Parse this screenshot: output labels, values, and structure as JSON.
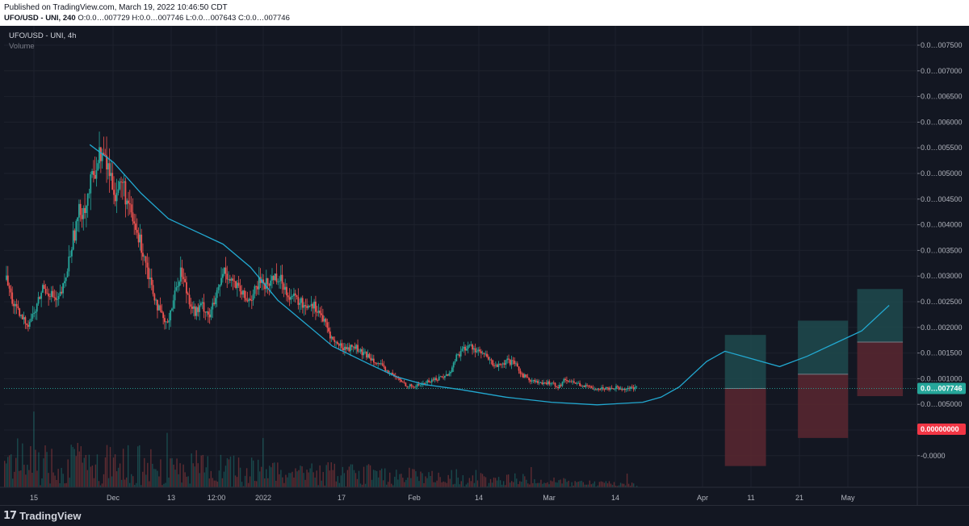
{
  "header": {
    "published": "Published on TradingView.com, March 19, 2022 10:46:50 CDT",
    "symbol_line": "UFO/USD - UNI, 240",
    "ohlc": {
      "open": "O:0.0…007729",
      "high": "H:0.0…007746",
      "low": "L:0.0…007643",
      "close": "C:0.0…007746"
    }
  },
  "legend": {
    "title": "UFO/USD - UNI, 4h",
    "volume": "Volume"
  },
  "footer": {
    "brand": "TradingView"
  },
  "colors": {
    "background": "#131722",
    "up": "#26a69a",
    "down": "#ef5350",
    "ma_line": "#22a8d0",
    "last_price": "#26a69a",
    "stop_tag": "#f23645",
    "target_zone": "#1f4a4e",
    "stop_zone": "#5a2730"
  },
  "chart_data": {
    "type": "candlestick",
    "y_axis_labels": [
      "0.0…007500",
      "0.0…007000",
      "0.0…006500",
      "0.0…006000",
      "0.0…005500",
      "0.0…005000",
      "0.0…004500",
      "0.0…004000",
      "0.0…003500",
      "0.0…003000",
      "0.0…002500",
      "0.0…002000",
      "0.0…001500",
      "0.0…001000",
      "0.0…005000",
      "-0.0000",
      "-0.0000"
    ],
    "x_axis_labels": [
      "15",
      "Dec",
      "13",
      "12:00",
      "2022",
      "17",
      "Feb",
      "14",
      "Mar",
      "14",
      "Apr",
      "11",
      "21",
      "May"
    ],
    "last_price_label": "0.0…007746",
    "stop_label": "0.00000000",
    "price_path": [
      [
        0,
        0.0029
      ],
      [
        1,
        0.0024
      ],
      [
        2,
        0.00215
      ],
      [
        3,
        0.00205
      ],
      [
        4,
        0.0023
      ],
      [
        5,
        0.00275
      ],
      [
        6,
        0.00265
      ],
      [
        7,
        0.00245
      ],
      [
        8,
        0.0028
      ],
      [
        9,
        0.0036
      ],
      [
        10,
        0.0042
      ],
      [
        11,
        0.0044
      ],
      [
        12,
        0.005
      ],
      [
        13,
        0.0054
      ],
      [
        14,
        0.0051
      ],
      [
        15,
        0.0046
      ],
      [
        16,
        0.0048
      ],
      [
        17,
        0.0042
      ],
      [
        18,
        0.0038
      ],
      [
        19,
        0.0034
      ],
      [
        20,
        0.0028
      ],
      [
        21,
        0.0023
      ],
      [
        22,
        0.002
      ],
      [
        23,
        0.0025
      ],
      [
        24,
        0.0031
      ],
      [
        25,
        0.0026
      ],
      [
        26,
        0.00225
      ],
      [
        27,
        0.0024
      ],
      [
        28,
        0.0022
      ],
      [
        29,
        0.0026
      ],
      [
        30,
        0.0031
      ],
      [
        31,
        0.0029
      ],
      [
        32,
        0.0027
      ],
      [
        33,
        0.0025
      ],
      [
        34,
        0.0026
      ],
      [
        35,
        0.0029
      ],
      [
        36,
        0.0028
      ],
      [
        37,
        0.003
      ],
      [
        38,
        0.00285
      ],
      [
        39,
        0.0026
      ],
      [
        40,
        0.0025
      ],
      [
        41,
        0.0024
      ],
      [
        42,
        0.00245
      ],
      [
        43,
        0.0023
      ],
      [
        44,
        0.002
      ],
      [
        45,
        0.0017
      ],
      [
        46,
        0.0016
      ],
      [
        47,
        0.00155
      ],
      [
        48,
        0.0016
      ],
      [
        49,
        0.00145
      ],
      [
        50,
        0.0014
      ],
      [
        51,
        0.0013
      ],
      [
        52,
        0.00115
      ],
      [
        53,
        0.00105
      ],
      [
        54,
        0.00095
      ],
      [
        55,
        0.00085
      ],
      [
        56,
        0.0008
      ],
      [
        57,
        0.00085
      ],
      [
        58,
        0.0009
      ],
      [
        59,
        0.00095
      ],
      [
        60,
        0.001
      ],
      [
        61,
        0.00105
      ],
      [
        62,
        0.0014
      ],
      [
        63,
        0.00155
      ],
      [
        64,
        0.0016
      ],
      [
        65,
        0.0015
      ],
      [
        66,
        0.0014
      ],
      [
        67,
        0.00125
      ],
      [
        68,
        0.0012
      ],
      [
        69,
        0.0013
      ],
      [
        70,
        0.00125
      ],
      [
        71,
        0.00105
      ],
      [
        72,
        0.00095
      ],
      [
        73,
        0.0009
      ],
      [
        74,
        0.00085
      ],
      [
        75,
        0.0009
      ],
      [
        76,
        0.0008
      ],
      [
        77,
        0.00095
      ],
      [
        78,
        0.0009
      ],
      [
        79,
        0.00085
      ],
      [
        80,
        0.0008
      ],
      [
        81,
        0.00078
      ],
      [
        82,
        0.00077
      ],
      [
        83,
        0.00078
      ],
      [
        84,
        0.00079
      ],
      [
        85,
        0.00077
      ],
      [
        86,
        0.00078
      ],
      [
        87,
        0.00077
      ]
    ],
    "moving_average": [
      [
        0.094,
        0.00555
      ],
      [
        0.12,
        0.0052
      ],
      [
        0.15,
        0.0046
      ],
      [
        0.18,
        0.0041
      ],
      [
        0.21,
        0.00385
      ],
      [
        0.24,
        0.0036
      ],
      [
        0.27,
        0.00315
      ],
      [
        0.3,
        0.0025
      ],
      [
        0.33,
        0.00205
      ],
      [
        0.36,
        0.0016
      ],
      [
        0.4,
        0.00125
      ],
      [
        0.43,
        0.001
      ],
      [
        0.46,
        0.00085
      ],
      [
        0.5,
        0.00075
      ],
      [
        0.55,
        0.0006
      ],
      [
        0.6,
        0.0005
      ],
      [
        0.65,
        0.00045
      ],
      [
        0.7,
        0.0005
      ],
      [
        0.72,
        0.0006
      ],
      [
        0.74,
        0.0008
      ],
      [
        0.77,
        0.0013
      ],
      [
        0.79,
        0.0015
      ],
      [
        0.82,
        0.00135
      ],
      [
        0.85,
        0.0012
      ],
      [
        0.88,
        0.0014
      ],
      [
        0.91,
        0.00165
      ],
      [
        0.94,
        0.0019
      ],
      [
        0.97,
        0.0024
      ]
    ],
    "positions": [
      {
        "x_start": 0.79,
        "x_end": 0.835,
        "entry": 0.00077,
        "target": 0.00182,
        "stop": -0.00075
      },
      {
        "x_start": 0.87,
        "x_end": 0.925,
        "entry": 0.00105,
        "target": 0.0021,
        "stop": -0.0002
      },
      {
        "x_start": 0.935,
        "x_end": 0.985,
        "entry": 0.00168,
        "target": 0.00272,
        "stop": 0.00062
      }
    ]
  }
}
